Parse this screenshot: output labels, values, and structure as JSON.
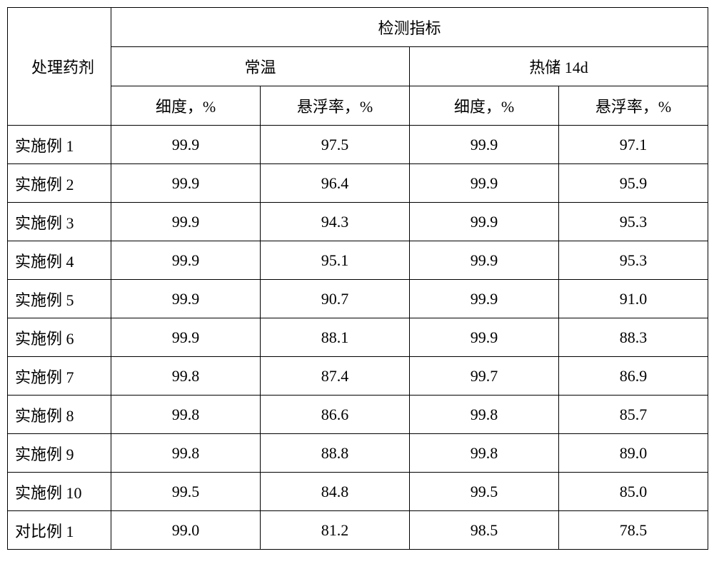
{
  "type": "table",
  "background_color": "#ffffff",
  "border_color": "#000000",
  "font_family": "SimSun",
  "font_size": 22,
  "header": {
    "row_label": "处理药剂",
    "main_header": "检测指标",
    "sub_headers": [
      "常温",
      "热储 14d"
    ],
    "metrics": [
      "细度，%",
      "悬浮率，%",
      "细度，%",
      "悬浮率，%"
    ]
  },
  "rows": [
    {
      "label": "实施例 1",
      "v1": "99.9",
      "v2": "97.5",
      "v3": "99.9",
      "v4": "97.1"
    },
    {
      "label": "实施例 2",
      "v1": "99.9",
      "v2": "96.4",
      "v3": "99.9",
      "v4": "95.9"
    },
    {
      "label": "实施例 3",
      "v1": "99.9",
      "v2": "94.3",
      "v3": "99.9",
      "v4": "95.3"
    },
    {
      "label": "实施例 4",
      "v1": "99.9",
      "v2": "95.1",
      "v3": "99.9",
      "v4": "95.3"
    },
    {
      "label": "实施例 5",
      "v1": "99.9",
      "v2": "90.7",
      "v3": "99.9",
      "v4": "91.0"
    },
    {
      "label": "实施例 6",
      "v1": "99.9",
      "v2": "88.1",
      "v3": "99.9",
      "v4": "88.3"
    },
    {
      "label": "实施例 7",
      "v1": "99.8",
      "v2": "87.4",
      "v3": "99.7",
      "v4": "86.9"
    },
    {
      "label": "实施例 8",
      "v1": "99.8",
      "v2": "86.6",
      "v3": "99.8",
      "v4": "85.7"
    },
    {
      "label": "实施例 9",
      "v1": "99.8",
      "v2": "88.8",
      "v3": "99.8",
      "v4": "89.0"
    },
    {
      "label": "实施例 10",
      "v1": "99.5",
      "v2": "84.8",
      "v3": "99.5",
      "v4": "85.0"
    },
    {
      "label": "对比例 1",
      "v1": "99.0",
      "v2": "81.2",
      "v3": "98.5",
      "v4": "78.5"
    }
  ]
}
